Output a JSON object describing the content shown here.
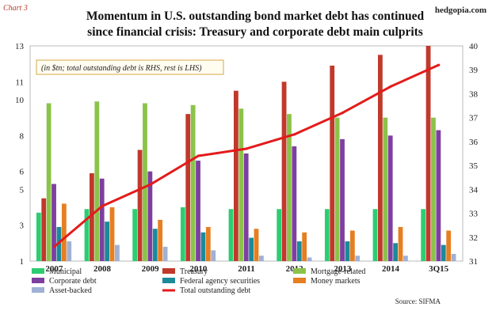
{
  "header": {
    "corner_label": "Chart 3",
    "brand": "hedgopia.com",
    "title_line1": "Momentum in U.S. outstanding bond market debt has continued",
    "title_line2": "since financial crisis: Treasury and corporate debt main culprits"
  },
  "annotation": "(in $tn; total outstanding debt is RHS, rest is LHS)",
  "source": "Source: SIFMA",
  "chart_data": {
    "type": "bar",
    "categories": [
      "2007",
      "2008",
      "2009",
      "2010",
      "2011",
      "2012",
      "2013",
      "2014",
      "3Q15"
    ],
    "left_axis": {
      "ticks": [
        "1",
        "3",
        "5",
        "6",
        "8",
        "10",
        "11",
        "13"
      ],
      "ylim": [
        1,
        13
      ]
    },
    "right_axis": {
      "ticks": [
        "31",
        "32",
        "33",
        "34",
        "35",
        "36",
        "37",
        "38",
        "39",
        "40"
      ],
      "ylim": [
        31,
        40
      ]
    },
    "series": [
      {
        "name": "Municipal",
        "type": "bar",
        "axis": "left",
        "color": "#2ecc71",
        "values": [
          3.7,
          3.9,
          3.9,
          4.0,
          3.9,
          3.9,
          3.9,
          3.9,
          3.9
        ]
      },
      {
        "name": "Treasury",
        "type": "bar",
        "axis": "left",
        "color": "#c0392b",
        "values": [
          4.5,
          5.9,
          7.2,
          9.2,
          10.5,
          11.0,
          11.9,
          12.5,
          13.0
        ]
      },
      {
        "name": "Mortgage-related",
        "type": "bar",
        "axis": "left",
        "color": "#8bc34a",
        "values": [
          9.8,
          9.9,
          9.8,
          9.7,
          9.5,
          9.2,
          9.0,
          9.0,
          9.0
        ]
      },
      {
        "name": "Corporate debt",
        "type": "bar",
        "axis": "left",
        "color": "#7e3fa0",
        "values": [
          5.3,
          5.6,
          6.0,
          6.6,
          7.0,
          7.4,
          7.8,
          8.0,
          8.3
        ]
      },
      {
        "name": "Federal agency securities",
        "type": "bar",
        "axis": "left",
        "color": "#1b8a99",
        "values": [
          2.9,
          3.2,
          2.8,
          2.6,
          2.3,
          2.1,
          2.1,
          2.0,
          1.9
        ]
      },
      {
        "name": "Money markets",
        "type": "bar",
        "axis": "left",
        "color": "#e67e22",
        "values": [
          4.2,
          4.0,
          3.3,
          2.9,
          2.8,
          2.6,
          2.7,
          2.9,
          2.7
        ]
      },
      {
        "name": "Asset-backed",
        "type": "bar",
        "axis": "left",
        "color": "#9fb1d4",
        "values": [
          2.1,
          1.9,
          1.8,
          1.6,
          1.3,
          1.2,
          1.3,
          1.3,
          1.4
        ]
      },
      {
        "name": "Total outstanding debt",
        "type": "line",
        "axis": "right",
        "color": "#e31b1b",
        "values": [
          31.6,
          33.3,
          34.2,
          35.4,
          35.7,
          36.3,
          37.2,
          38.3,
          39.2
        ]
      }
    ],
    "legend": [
      {
        "name": "Municipal",
        "color": "#2ecc71",
        "kind": "bar"
      },
      {
        "name": "Treasury",
        "color": "#c0392b",
        "kind": "bar"
      },
      {
        "name": "Mortgage-related",
        "color": "#8bc34a",
        "kind": "bar"
      },
      {
        "name": "Corporate debt",
        "color": "#7e3fa0",
        "kind": "bar"
      },
      {
        "name": "Federal agency securities",
        "color": "#1b8a99",
        "kind": "bar"
      },
      {
        "name": "Money markets",
        "color": "#e67e22",
        "kind": "bar"
      },
      {
        "name": "Asset-backed",
        "color": "#9fb1d4",
        "kind": "bar"
      },
      {
        "name": "Total outstanding debt",
        "color": "#e31b1b",
        "kind": "line"
      }
    ],
    "legend_placement": "bottom",
    "grid": false
  }
}
